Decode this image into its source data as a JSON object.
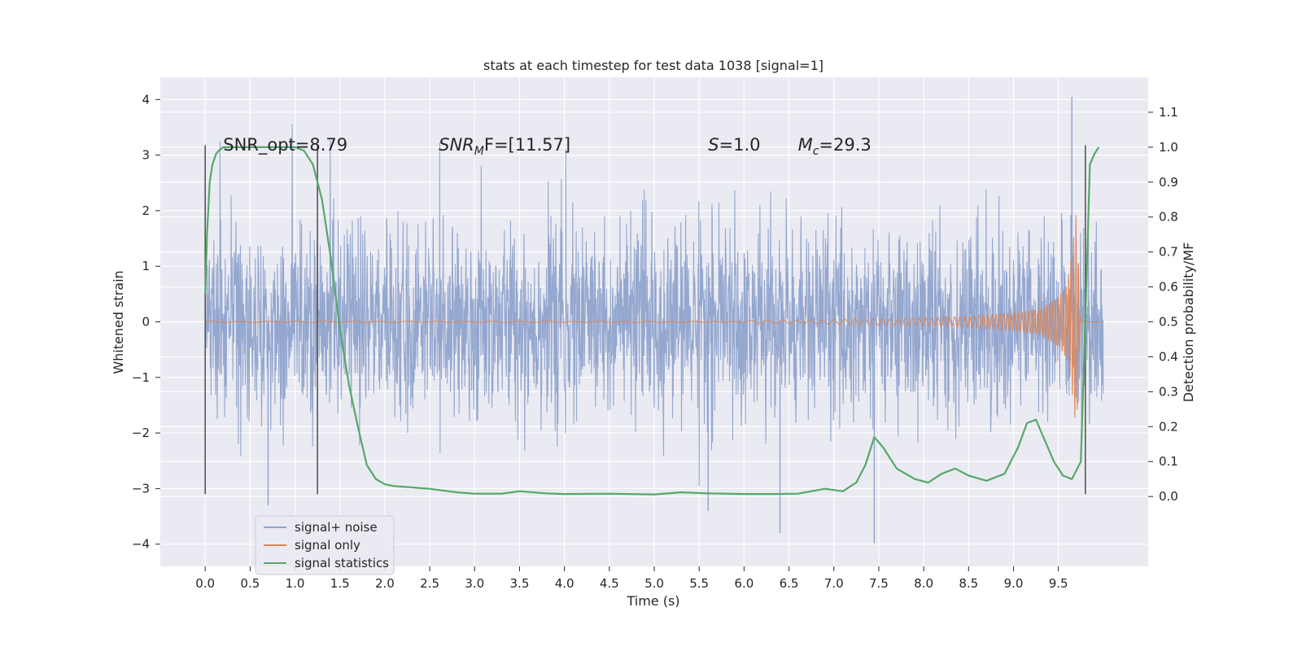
{
  "chart_data": {
    "type": "line",
    "title": "stats at each timestep for test data 1038 [signal=1]",
    "xlabel": "Time (s)",
    "ylabel_left": "Whitened strain",
    "ylabel_right": "Detection probability/MF",
    "xlim": [
      -0.5,
      10.5
    ],
    "ylim_left": [
      -4.4,
      4.4
    ],
    "ylim_right": [
      -0.2,
      1.2
    ],
    "x_ticks": [
      0.0,
      0.5,
      1.0,
      1.5,
      2.0,
      2.5,
      3.0,
      3.5,
      4.0,
      4.5,
      5.0,
      5.5,
      6.0,
      6.5,
      7.0,
      7.5,
      8.0,
      8.5,
      9.0,
      9.5
    ],
    "x_tick_labels": [
      "0.0",
      "0.5",
      "1.0",
      "1.5",
      "2.0",
      "2.5",
      "3.0",
      "3.5",
      "4.0",
      "4.5",
      "5.0",
      "5.5",
      "6.0",
      "6.5",
      "7.0",
      "7.5",
      "8.0",
      "8.5",
      "9.0",
      "9.5"
    ],
    "y_left_ticks": [
      -4,
      -3,
      -2,
      -1,
      0,
      1,
      2,
      3,
      4
    ],
    "y_left_tick_labels": [
      "−4",
      "−3",
      "−2",
      "−1",
      "0",
      "1",
      "2",
      "3",
      "4"
    ],
    "y_right_ticks": [
      0.0,
      0.1,
      0.2,
      0.3,
      0.4,
      0.5,
      0.6,
      0.7,
      0.8,
      0.9,
      1.0,
      1.1
    ],
    "y_right_tick_labels": [
      "0.0",
      "0.1",
      "0.2",
      "0.3",
      "0.4",
      "0.5",
      "0.6",
      "0.7",
      "0.8",
      "0.9",
      "1.0",
      "1.1"
    ],
    "annotations": [
      {
        "id": "snr-opt",
        "text": "SNR_opt=8.79",
        "x": 0.2,
        "y": 3.2
      },
      {
        "id": "snr-mf",
        "text": "SNR",
        "sub": "M",
        "tail": "F=[11.57]",
        "x": 2.6,
        "y": 3.2
      },
      {
        "id": "s",
        "text": "S",
        "tail": "=1.0",
        "x": 5.6,
        "y": 3.2
      },
      {
        "id": "mc",
        "text": "M",
        "sub": "c",
        "tail": "=29.3",
        "x": 6.6,
        "y": 3.2
      }
    ],
    "vlines": [
      0.0,
      1.25,
      9.8
    ],
    "vline_range": [
      -3.1,
      3.18
    ],
    "series": [
      {
        "name": "signal+ noise",
        "color": "#8fa3cc",
        "t_range": [
          0.0,
          10.0
        ],
        "envelope_std": 0.85,
        "typical_range": [
          -2.8,
          2.8
        ],
        "max": 4.05,
        "min": -3.98
      },
      {
        "name": "signal only",
        "color": "#dd8452",
        "chirp_times": [
          6.0,
          7.0,
          8.0,
          8.5,
          9.0,
          9.3,
          9.5,
          9.6,
          9.65,
          9.7,
          9.75
        ],
        "chirp_amplitudes": [
          0.02,
          0.04,
          0.07,
          0.1,
          0.16,
          0.23,
          0.45,
          0.7,
          1.3,
          2.0,
          0.0
        ]
      },
      {
        "name": "signal statistics",
        "color": "#55a868",
        "x": [
          0.0,
          0.02,
          0.05,
          0.08,
          0.12,
          0.15,
          0.2,
          0.3,
          0.5,
          0.8,
          1.0,
          1.1,
          1.2,
          1.3,
          1.4,
          1.5,
          1.6,
          1.7,
          1.8,
          1.9,
          2.0,
          2.1,
          2.2,
          2.5,
          2.8,
          3.0,
          3.3,
          3.5,
          3.8,
          4.0,
          4.5,
          5.0,
          5.3,
          5.6,
          6.0,
          6.3,
          6.6,
          6.9,
          7.1,
          7.25,
          7.35,
          7.45,
          7.55,
          7.7,
          7.9,
          8.05,
          8.2,
          8.35,
          8.5,
          8.7,
          8.9,
          9.05,
          9.15,
          9.25,
          9.35,
          9.45,
          9.55,
          9.65,
          9.75,
          9.8,
          9.85,
          9.9,
          9.95
        ],
        "y": [
          0.58,
          0.75,
          0.9,
          0.95,
          0.98,
          0.99,
          1.0,
          1.0,
          1.0,
          1.0,
          1.0,
          0.99,
          0.95,
          0.85,
          0.68,
          0.48,
          0.32,
          0.2,
          0.09,
          0.05,
          0.035,
          0.03,
          0.028,
          0.022,
          0.012,
          0.008,
          0.008,
          0.015,
          0.009,
          0.007,
          0.008,
          0.006,
          0.012,
          0.009,
          0.007,
          0.007,
          0.008,
          0.022,
          0.015,
          0.04,
          0.09,
          0.17,
          0.14,
          0.08,
          0.05,
          0.04,
          0.065,
          0.08,
          0.06,
          0.045,
          0.065,
          0.14,
          0.21,
          0.22,
          0.16,
          0.1,
          0.06,
          0.05,
          0.1,
          0.5,
          0.95,
          0.98,
          1.0
        ]
      }
    ],
    "legend": {
      "location": "lower-left",
      "entries": [
        {
          "label": "signal+ noise",
          "color": "#8fa3cc"
        },
        {
          "label": "signal only",
          "color": "#dd8452"
        },
        {
          "label": "signal statistics",
          "color": "#55a868"
        }
      ]
    },
    "style": {
      "plot_bg": "#eaeaf2",
      "grid_color": "#ffffff",
      "vline_color": "#555555"
    }
  }
}
